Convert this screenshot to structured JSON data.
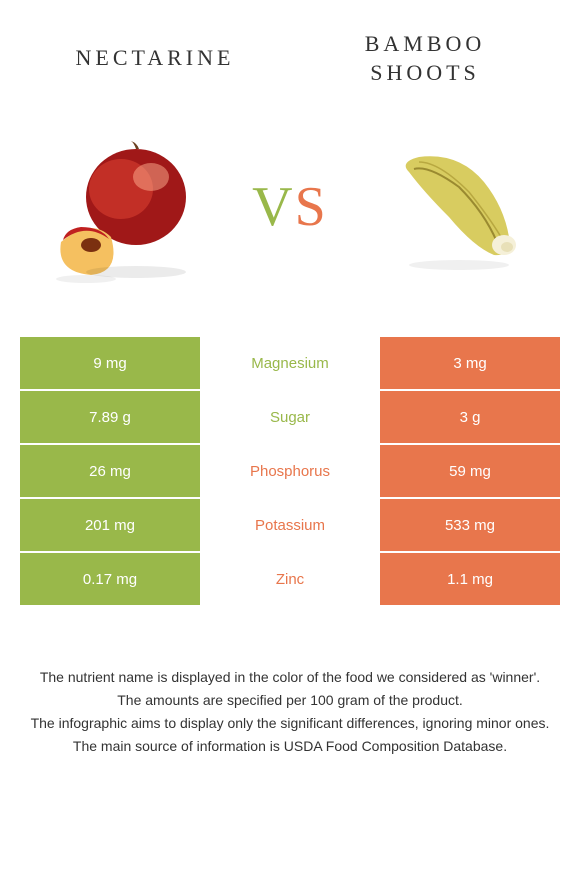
{
  "food_left": {
    "name": "NECTARINE"
  },
  "food_right": {
    "name": "BAMBOO\nSHOOTS"
  },
  "vs": {
    "v": "V",
    "s": "S"
  },
  "colors": {
    "left": "#99b84a",
    "right": "#e8764c",
    "text_left": "#99b84a",
    "text_right": "#e8764c"
  },
  "rows": [
    {
      "nutrient": "Magnesium",
      "left": "9 mg",
      "right": "3 mg",
      "winner": "left"
    },
    {
      "nutrient": "Sugar",
      "left": "7.89 g",
      "right": "3 g",
      "winner": "left"
    },
    {
      "nutrient": "Phosphorus",
      "left": "26 mg",
      "right": "59 mg",
      "winner": "right"
    },
    {
      "nutrient": "Potassium",
      "left": "201 mg",
      "right": "533 mg",
      "winner": "right"
    },
    {
      "nutrient": "Zinc",
      "left": "0.17 mg",
      "right": "1.1 mg",
      "winner": "right"
    }
  ],
  "footer": {
    "l1": "The nutrient name is displayed in the color of the food we considered as 'winner'.",
    "l2": "The amounts are specified per 100 gram of the product.",
    "l3": "The infographic aims to display only the significant differences, ignoring minor ones.",
    "l4": "The main source of information is USDA Food Composition Database."
  }
}
